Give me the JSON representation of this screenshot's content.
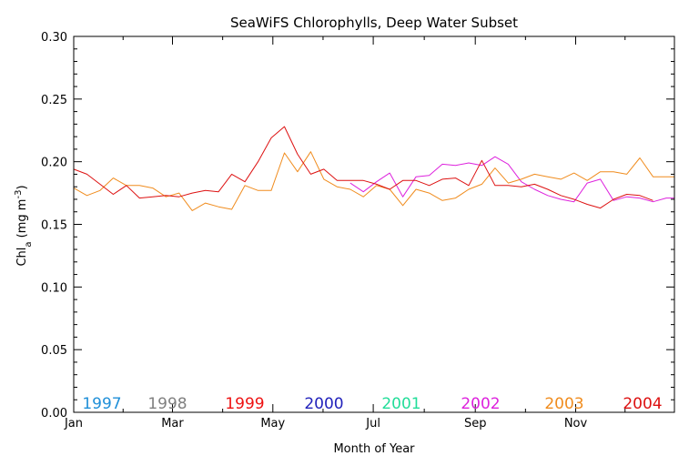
{
  "chart_data": {
    "type": "line",
    "title": "SeaWiFS Chlorophylls, Deep Water Subset",
    "xlabel": "Month of Year",
    "ylabel_main": "Chl",
    "ylabel_sub": "a",
    "ylabel_unit": " (mg m",
    "ylabel_exp": "-3",
    "ylabel_close": ")",
    "xlim": [
      1,
      366
    ],
    "ylim": [
      0,
      0.3
    ],
    "x_ticks": [
      {
        "label": "Jan",
        "day": 1
      },
      {
        "label": "Mar",
        "day": 61
      },
      {
        "label": "May",
        "day": 122
      },
      {
        "label": "Jul",
        "day": 183
      },
      {
        "label": "Sep",
        "day": 245
      },
      {
        "label": "Nov",
        "day": 306
      }
    ],
    "y_ticks": [
      "0.00",
      "0.05",
      "0.10",
      "0.15",
      "0.20",
      "0.25",
      "0.30"
    ],
    "y_tick_values": [
      0,
      0.05,
      0.1,
      0.15,
      0.2,
      0.25,
      0.3
    ],
    "grid": false,
    "legend": [
      {
        "label": "1997",
        "color": "#1f8fd8"
      },
      {
        "label": "1998",
        "color": "#808080"
      },
      {
        "label": "1999",
        "color": "#ee1111"
      },
      {
        "label": "2000",
        "color": "#2222bb"
      },
      {
        "label": "2001",
        "color": "#22dd99"
      },
      {
        "label": "2002",
        "color": "#dd22dd"
      },
      {
        "label": "2003",
        "color": "#f08c1e"
      },
      {
        "label": "2004",
        "color": "#dd1111"
      }
    ],
    "series": [
      {
        "name": "2002",
        "color": "#dd22dd",
        "x": [
          169,
          177,
          185,
          193,
          201,
          209,
          217,
          225,
          233,
          241,
          249,
          257,
          265,
          273,
          281,
          289,
          297,
          305,
          313,
          321,
          329,
          337,
          345,
          353,
          361,
          366
        ],
        "y": [
          0.183,
          0.176,
          0.184,
          0.191,
          0.172,
          0.188,
          0.189,
          0.198,
          0.197,
          0.199,
          0.197,
          0.204,
          0.198,
          0.184,
          0.178,
          0.173,
          0.17,
          0.168,
          0.183,
          0.186,
          0.169,
          0.172,
          0.171,
          0.168,
          0.171,
          0.171
        ]
      },
      {
        "name": "2003",
        "color": "#f08c1e",
        "x": [
          1,
          9,
          17,
          25,
          33,
          41,
          49,
          57,
          65,
          73,
          81,
          89,
          97,
          105,
          113,
          121,
          129,
          137,
          145,
          153,
          161,
          169,
          177,
          185,
          193,
          201,
          209,
          217,
          225,
          233,
          241,
          249,
          257,
          265,
          273,
          281,
          289,
          297,
          305,
          313,
          321,
          329,
          337,
          345,
          353,
          361,
          366
        ],
        "y": [
          0.179,
          0.173,
          0.177,
          0.187,
          0.181,
          0.181,
          0.179,
          0.172,
          0.175,
          0.161,
          0.167,
          0.164,
          0.162,
          0.181,
          0.177,
          0.177,
          0.207,
          0.192,
          0.208,
          0.186,
          0.18,
          0.178,
          0.172,
          0.181,
          0.178,
          0.165,
          0.178,
          0.175,
          0.169,
          0.171,
          0.178,
          0.182,
          0.195,
          0.183,
          0.186,
          0.19,
          0.188,
          0.186,
          0.191,
          0.185,
          0.192,
          0.192,
          0.19,
          0.203,
          0.188,
          0.188,
          0.188
        ]
      },
      {
        "name": "2004",
        "color": "#dd1111",
        "x": [
          1,
          9,
          17,
          25,
          33,
          41,
          49,
          57,
          65,
          73,
          81,
          89,
          97,
          105,
          113,
          121,
          129,
          137,
          145,
          153,
          161,
          169,
          177,
          185,
          193,
          201,
          209,
          217,
          225,
          233,
          241,
          249,
          257,
          265,
          273,
          281,
          289,
          297,
          305,
          313,
          321,
          329,
          337,
          345,
          353
        ],
        "y": [
          0.194,
          0.19,
          0.182,
          0.174,
          0.181,
          0.171,
          0.172,
          0.173,
          0.172,
          0.175,
          0.177,
          0.176,
          0.19,
          0.184,
          0.2,
          0.219,
          0.228,
          0.206,
          0.19,
          0.194,
          0.185,
          0.185,
          0.185,
          0.182,
          0.178,
          0.185,
          0.185,
          0.181,
          0.186,
          0.187,
          0.181,
          0.201,
          0.181,
          0.181,
          0.18,
          0.182,
          0.178,
          0.173,
          0.17,
          0.166,
          0.163,
          0.17,
          0.174,
          0.173,
          0.169
        ]
      }
    ]
  }
}
